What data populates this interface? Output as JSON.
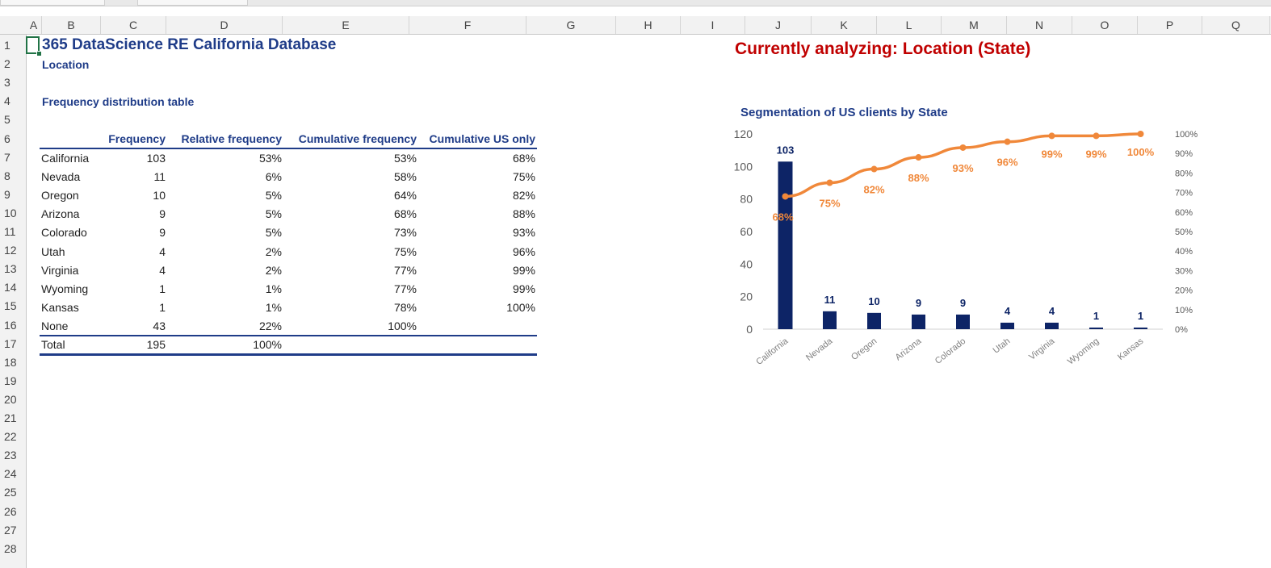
{
  "columns": [
    "A",
    "B",
    "C",
    "D",
    "E",
    "F",
    "G",
    "H",
    "I",
    "J",
    "K",
    "L",
    "M",
    "N",
    "O",
    "P",
    "Q"
  ],
  "rows": [
    "1",
    "2",
    "3",
    "4",
    "5",
    "6",
    "7",
    "8",
    "9",
    "10",
    "11",
    "12",
    "13",
    "14",
    "15",
    "16",
    "17",
    "18",
    "19",
    "20",
    "21",
    "22",
    "23",
    "24",
    "25",
    "26",
    "27",
    "28"
  ],
  "sheet": {
    "title": "365 DataScience RE California Database",
    "subtitle": "Location",
    "table_title": "Frequency distribution table",
    "analyzing": "Currently analyzing: Location (State)"
  },
  "table": {
    "headers": {
      "frequency": "Frequency",
      "relative": "Relative frequency",
      "cumulative": "Cumulative frequency",
      "cumulative_us": "Cumulative US only"
    },
    "rows": [
      {
        "name": "California",
        "freq": "103",
        "rel": "53%",
        "cum": "53%",
        "us": "68%"
      },
      {
        "name": "Nevada",
        "freq": "11",
        "rel": "6%",
        "cum": "58%",
        "us": "75%"
      },
      {
        "name": "Oregon",
        "freq": "10",
        "rel": "5%",
        "cum": "64%",
        "us": "82%"
      },
      {
        "name": "Arizona",
        "freq": "9",
        "rel": "5%",
        "cum": "68%",
        "us": "88%"
      },
      {
        "name": "Colorado",
        "freq": "9",
        "rel": "5%",
        "cum": "73%",
        "us": "93%"
      },
      {
        "name": "Utah",
        "freq": "4",
        "rel": "2%",
        "cum": "75%",
        "us": "96%"
      },
      {
        "name": "Virginia",
        "freq": "4",
        "rel": "2%",
        "cum": "77%",
        "us": "99%"
      },
      {
        "name": "Wyoming",
        "freq": "1",
        "rel": "1%",
        "cum": "77%",
        "us": "99%"
      },
      {
        "name": "Kansas",
        "freq": "1",
        "rel": "1%",
        "cum": "78%",
        "us": "100%"
      },
      {
        "name": "None",
        "freq": "43",
        "rel": "22%",
        "cum": "100%",
        "us": ""
      }
    ],
    "total": {
      "name": "Total",
      "freq": "195",
      "rel": "100%"
    }
  },
  "colors": {
    "bar": "#0d2466",
    "line": "#f0883a",
    "title": "#1f3c88",
    "accent_red": "#c00000",
    "selection": "#217346"
  },
  "chart_data": {
    "type": "bar",
    "title": "Segmentation of US clients by State",
    "categories": [
      "California",
      "Nevada",
      "Oregon",
      "Arizona",
      "Colorado",
      "Utah",
      "Virginia",
      "Wyoming",
      "Kansas"
    ],
    "series": [
      {
        "type": "bar",
        "values": [
          103,
          11,
          10,
          9,
          9,
          4,
          4,
          1,
          1
        ]
      },
      {
        "type": "line",
        "axis": "secondary",
        "values": [
          68,
          75,
          82,
          88,
          93,
          96,
          99,
          99,
          100
        ],
        "labels": [
          "68%",
          "75%",
          "82%",
          "88%",
          "93%",
          "96%",
          "99%",
          "99%",
          "100%"
        ]
      }
    ],
    "ylim": [
      0,
      120
    ],
    "yticks": [
      "0",
      "20",
      "40",
      "60",
      "80",
      "100",
      "120"
    ],
    "y2lim": [
      0,
      100
    ],
    "y2ticks": [
      "0%",
      "10%",
      "20%",
      "30%",
      "40%",
      "50%",
      "60%",
      "70%",
      "80%",
      "90%",
      "100%"
    ],
    "xlabel": "",
    "ylabel": "",
    "grid": false,
    "legend": "none"
  }
}
